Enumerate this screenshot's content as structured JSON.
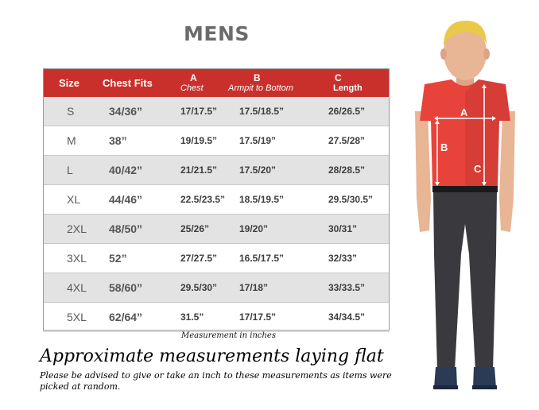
{
  "title": "MENS",
  "table": {
    "headers": {
      "size": "Size",
      "chest_fits": "Chest Fits",
      "a_letter": "A",
      "a_label": "Chest",
      "b_letter": "B",
      "b_label": "Armpit to Bottom",
      "c_letter": "C",
      "c_label": "Length"
    },
    "rows": [
      {
        "size": "S",
        "chest_fits": "34/36”",
        "a": "17/17.5”",
        "b": "17.5/18.5”",
        "c": "26/26.5”"
      },
      {
        "size": "M",
        "chest_fits": "38”",
        "a": "19/19.5”",
        "b": "17.5/19”",
        "c": "27.5/28”"
      },
      {
        "size": "L",
        "chest_fits": "40/42”",
        "a": "21/21.5”",
        "b": "17.5/20”",
        "c": "28/28.5”"
      },
      {
        "size": "XL",
        "chest_fits": "44/46”",
        "a": "22.5/23.5”",
        "b": "18.5/19.5”",
        "c": "29.5/30.5”"
      },
      {
        "size": "2XL",
        "chest_fits": "48/50”",
        "a": "25/26”",
        "b": "19/20”",
        "c": "30/31”"
      },
      {
        "size": "3XL",
        "chest_fits": "52”",
        "a": "27/27.5”",
        "b": "16.5/17.5”",
        "c": "32/33”"
      },
      {
        "size": "4XL",
        "chest_fits": "58/60”",
        "a": "29.5/30”",
        "b": "17/18”",
        "c": "33/33.5”"
      },
      {
        "size": "5XL",
        "chest_fits": "62/64”",
        "a": "31.5”",
        "b": "17/17.5”",
        "c": "34/34.5”"
      }
    ]
  },
  "unit_note": "Measurement in inches",
  "approx_heading": "Approximate measurements laying flat",
  "advice": "Please be advised to give or take an inch to these measurements as items were picked at random.",
  "figure": {
    "label_a": "A",
    "label_b": "B",
    "label_c": "C",
    "colors": {
      "hair": "#e8c94a",
      "skin": "#e8b595",
      "shirt": "#e8433b",
      "belt": "#1a1a1a",
      "pants": "#3a3a3e",
      "shoes": "#2b3a55"
    }
  },
  "colors": {
    "header_bg": "#c9302c",
    "row_alt": "#e3e3e3"
  }
}
